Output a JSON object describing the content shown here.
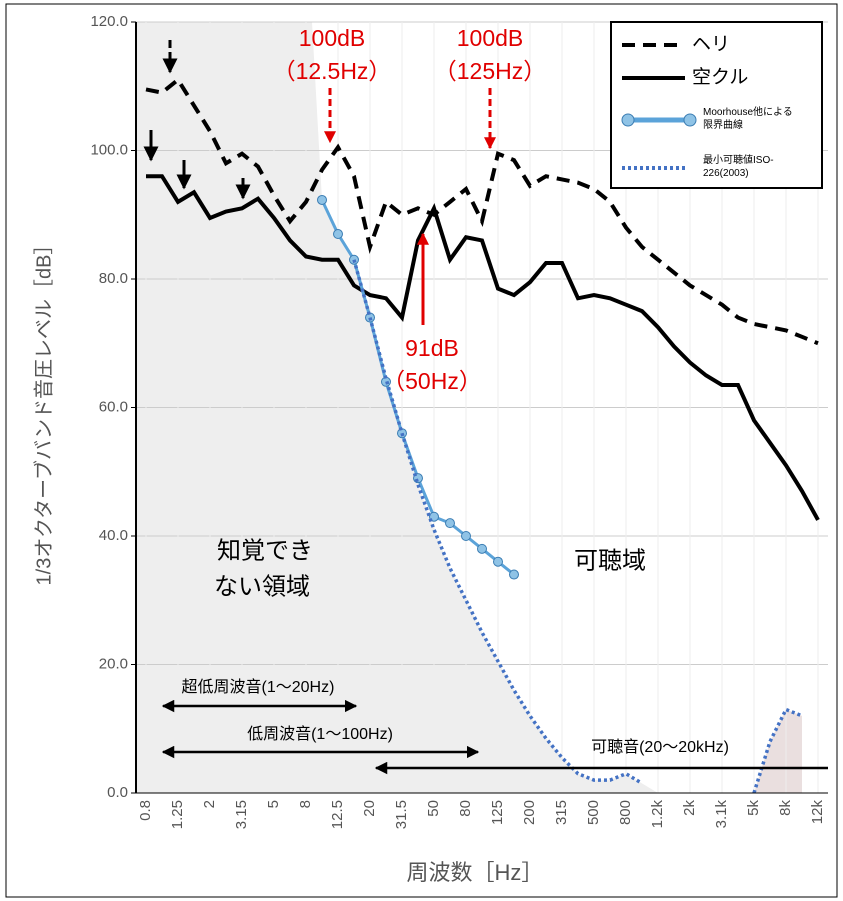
{
  "chart_data": {
    "type": "line",
    "y_label": "1/3オクターブバンド音圧レベル［dB］",
    "x_label": "周波数［Hz］",
    "categories": [
      "0.8",
      null,
      "1.25",
      null,
      "2",
      null,
      "3.15",
      null,
      "5",
      null,
      "8",
      null,
      "12.5",
      null,
      "20",
      null,
      "31.5",
      null,
      "50",
      null,
      "80",
      null,
      "125",
      null,
      "200",
      null,
      "315",
      null,
      "500",
      null,
      "800",
      null,
      "1.2k",
      null,
      "2k",
      null,
      "3.1k",
      null,
      "5k",
      null,
      "8k",
      null,
      "12k"
    ],
    "ylim": [
      0,
      120
    ],
    "yticks": [
      {
        "value": 0,
        "label": "0.0"
      },
      {
        "value": 20,
        "label": "20.0"
      },
      {
        "value": 40,
        "label": "40.0"
      },
      {
        "value": 60,
        "label": "60.0"
      },
      {
        "value": 80,
        "label": "80.0"
      },
      {
        "value": 100,
        "label": "100.0"
      },
      {
        "value": 120,
        "label": "120.0"
      }
    ],
    "grid": true,
    "legend": "top-right",
    "series": [
      {
        "name": "ヘリ",
        "color": "#000000",
        "line_style": "dashed",
        "values": [
          109.5,
          109,
          111,
          107,
          103,
          98,
          99.5,
          97.5,
          93,
          89,
          92,
          97,
          100.5,
          96,
          85,
          92,
          90,
          91,
          90,
          92,
          94,
          89,
          99.5,
          98.5,
          94.5,
          96,
          95.5,
          95,
          94,
          92,
          88,
          85,
          83,
          81,
          79,
          77.5,
          76,
          74,
          73,
          72.5,
          72,
          71,
          70
        ]
      },
      {
        "name": "空クル",
        "color": "#000000",
        "line_style": "solid",
        "values": [
          96,
          96,
          92,
          93.5,
          89.5,
          90.5,
          91,
          92.5,
          89.5,
          86,
          83.5,
          83,
          83,
          79,
          77.5,
          77,
          74,
          86,
          91,
          83,
          86.5,
          86,
          78.5,
          77.5,
          79.5,
          82.5,
          82.5,
          77,
          77.5,
          77,
          76,
          75,
          72.5,
          69.5,
          67,
          65,
          63.5,
          63.5,
          58,
          54.5,
          51,
          47,
          42.5
        ]
      },
      {
        "name": "Moorhouse他による限界曲線",
        "color": "#5ba3d9",
        "line_style": "solid",
        "markers": true,
        "values": [
          null,
          null,
          null,
          null,
          null,
          null,
          null,
          null,
          null,
          null,
          null,
          92.3,
          87,
          83,
          74,
          64,
          56,
          49,
          43,
          42,
          40,
          38,
          36,
          34,
          null,
          null,
          null,
          null,
          null,
          null,
          null,
          null,
          null,
          null,
          null,
          null,
          null,
          null,
          null,
          null,
          null,
          null,
          null
        ]
      },
      {
        "name": "最小可聴値ISO-226(2003)",
        "color": "#4472c4",
        "line_style": "dotted",
        "values": [
          null,
          null,
          null,
          null,
          null,
          null,
          null,
          null,
          null,
          null,
          null,
          null,
          null,
          83,
          74,
          64.5,
          56,
          48,
          41,
          35,
          30,
          25,
          20.5,
          16,
          12,
          8.5,
          5.5,
          3,
          2,
          2,
          3,
          1.5,
          null,
          null,
          null,
          null,
          null,
          null,
          0,
          8,
          13,
          12,
          null
        ]
      }
    ],
    "annotations": [
      "100dB",
      "（12.5Hz）",
      "100dB",
      "（125Hz）",
      "91dB",
      "（50Hz）",
      "知覚でき",
      "ない領域",
      "可聴域",
      "超低周波音(1〜20Hz)",
      "低周波音(1〜100Hz)",
      "可聴音(20〜20kHz)"
    ]
  }
}
